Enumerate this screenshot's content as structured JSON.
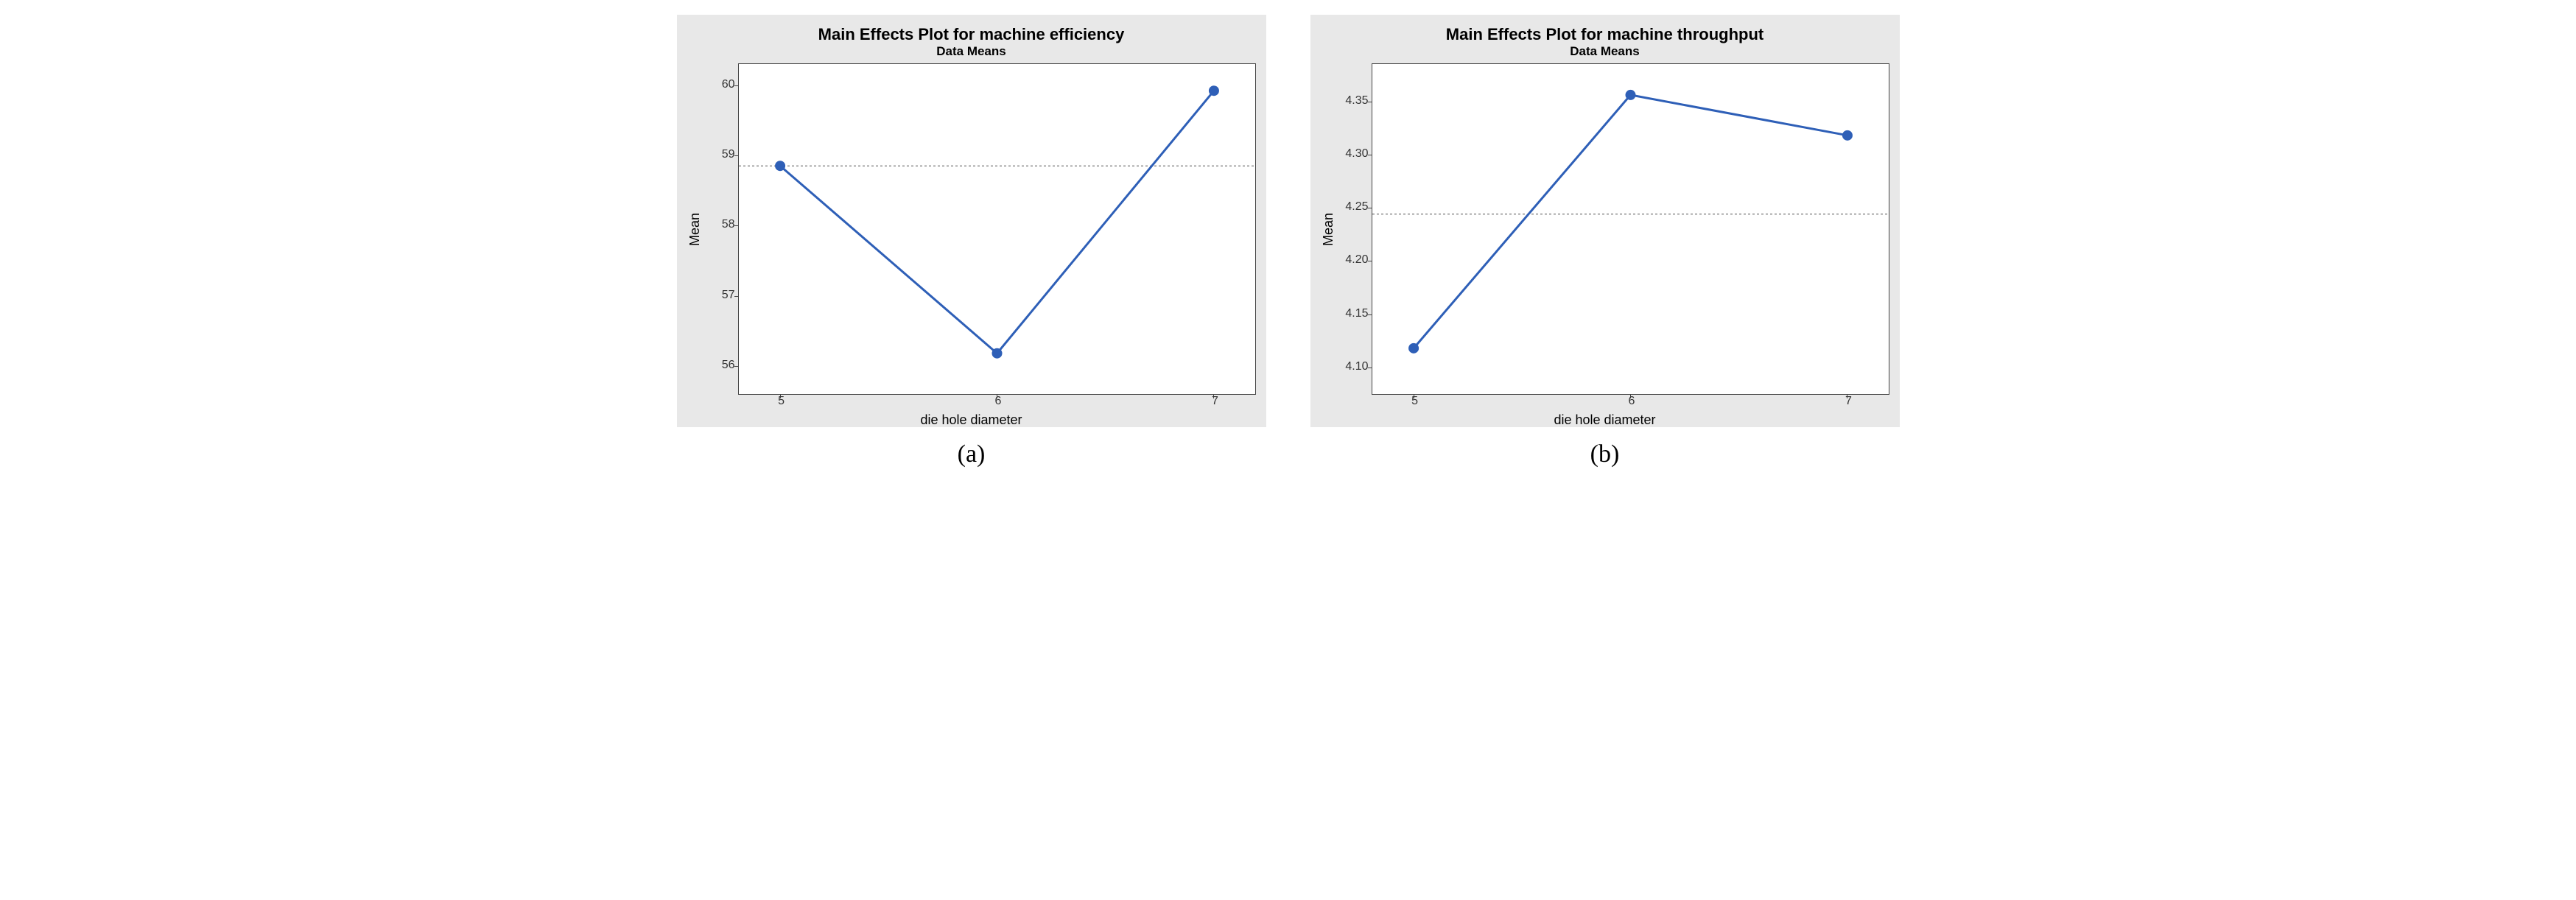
{
  "panels": [
    {
      "caption": "(a)",
      "chart": {
        "type": "line",
        "title": "Main Effects Plot for machine efficiency",
        "subtitle": "Data Means",
        "title_fontsize": 22,
        "subtitle_fontsize": 17,
        "xlabel": "die hole diameter",
        "ylabel": "Mean",
        "axis_label_fontsize": 18,
        "tick_fontsize": 16,
        "x_categories": [
          "5",
          "6",
          "7"
        ],
        "x_positions": [
          0.08,
          0.5,
          0.92
        ],
        "y_values": [
          58.85,
          56.18,
          59.92
        ],
        "ylim": [
          55.6,
          60.3
        ],
        "yticks": [
          56,
          57,
          58,
          59,
          60
        ],
        "reference_line": 58.85,
        "line_color": "#2e5fb7",
        "line_width": 3,
        "marker_color": "#2e5fb7",
        "marker_radius": 7,
        "background_color": "#ffffff",
        "frame_color": "#444444",
        "outer_background": "#e8e8e8",
        "refline_color": "#555555",
        "refline_dash": "3,3"
      }
    },
    {
      "caption": "(b)",
      "chart": {
        "type": "line",
        "title": "Main Effects Plot for machine throughput",
        "subtitle": "Data Means",
        "title_fontsize": 22,
        "subtitle_fontsize": 17,
        "xlabel": "die hole diameter",
        "ylabel": "Mean",
        "axis_label_fontsize": 18,
        "tick_fontsize": 16,
        "x_categories": [
          "5",
          "6",
          "7"
        ],
        "x_positions": [
          0.08,
          0.5,
          0.92
        ],
        "y_values": [
          4.118,
          4.356,
          4.318
        ],
        "ylim": [
          4.075,
          4.385
        ],
        "yticks": [
          4.1,
          4.15,
          4.2,
          4.25,
          4.3,
          4.35
        ],
        "ytick_labels": [
          "4.10",
          "4.15",
          "4.20",
          "4.25",
          "4.30",
          "4.35"
        ],
        "reference_line": 4.244,
        "line_color": "#2e5fb7",
        "line_width": 3,
        "marker_color": "#2e5fb7",
        "marker_radius": 7,
        "background_color": "#ffffff",
        "frame_color": "#444444",
        "outer_background": "#e8e8e8",
        "refline_color": "#555555",
        "refline_dash": "3,3"
      }
    }
  ]
}
